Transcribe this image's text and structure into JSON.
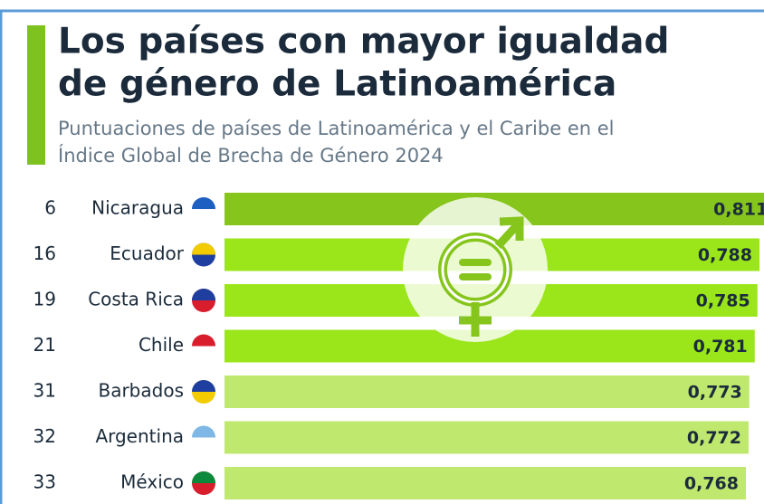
{
  "chart_data": {
    "type": "bar",
    "title": [
      "Los países con mayor igualdad",
      "de género de Latinoamérica"
    ],
    "subtitle": [
      "Puntuaciones de países de Latinoamérica y el Caribe en el",
      "Índice Global de Brecha de Género 2024"
    ],
    "ranks": [
      6,
      16,
      19,
      21,
      31,
      32,
      33
    ],
    "categories": [
      "Nicaragua",
      "Ecuador",
      "Costa Rica",
      "Chile",
      "Barbados",
      "Argentina",
      "México"
    ],
    "values": [
      0.811,
      0.788,
      0.785,
      0.781,
      0.773,
      0.772,
      0.768
    ],
    "value_labels": [
      "0,811",
      "0,788",
      "0,785",
      "0,781",
      "0,773",
      "0,772",
      "0,768"
    ],
    "colors": [
      "#86c51c",
      "#9ae61a",
      "#9ae61a",
      "#9ae61a",
      "#bfe86e",
      "#bfe86e",
      "#bfe86e"
    ],
    "xlim": [
      0,
      0.8
    ]
  }
}
